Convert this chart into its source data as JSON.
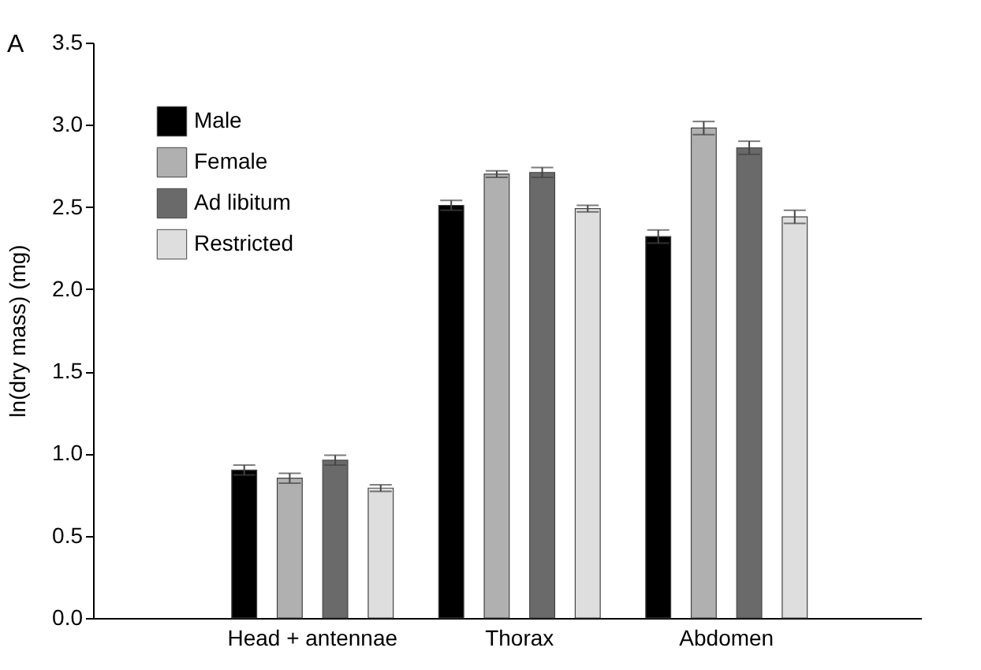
{
  "chart_data": {
    "type": "bar",
    "annotations": [
      "A"
    ],
    "ylabel": "ln(dry mass) (mg)",
    "categories": [
      "Head + antennae",
      "Thorax",
      "Abdomen"
    ],
    "series": [
      {
        "name": "Male",
        "color": "#000000",
        "values": [
          0.9,
          2.51,
          2.32
        ],
        "errors": [
          0.03,
          0.03,
          0.04
        ]
      },
      {
        "name": "Female",
        "color": "#b0b0b0",
        "values": [
          0.85,
          2.7,
          2.98
        ],
        "errors": [
          0.03,
          0.02,
          0.04
        ]
      },
      {
        "name": "Ad libitum",
        "color": "#6a6a6a",
        "values": [
          0.96,
          2.71,
          2.86
        ],
        "errors": [
          0.03,
          0.03,
          0.04
        ]
      },
      {
        "name": "Restricted",
        "color": "#dedede",
        "values": [
          0.79,
          2.49,
          2.44
        ],
        "errors": [
          0.02,
          0.02,
          0.04
        ]
      }
    ],
    "ylim": [
      0,
      3.5
    ],
    "yticks": [
      {
        "value": 0,
        "label": "0.0"
      },
      {
        "value": 0.5,
        "label": "0.5"
      },
      {
        "value": 1,
        "label": "1.0"
      },
      {
        "value": 1.5,
        "label": "1.5"
      },
      {
        "value": 2,
        "label": "2.0"
      },
      {
        "value": 2.5,
        "label": "2.5"
      },
      {
        "value": 3,
        "label": "3.0"
      },
      {
        "value": 3.5,
        "label": "3.5"
      }
    ],
    "grid": false,
    "legend": "top left"
  }
}
